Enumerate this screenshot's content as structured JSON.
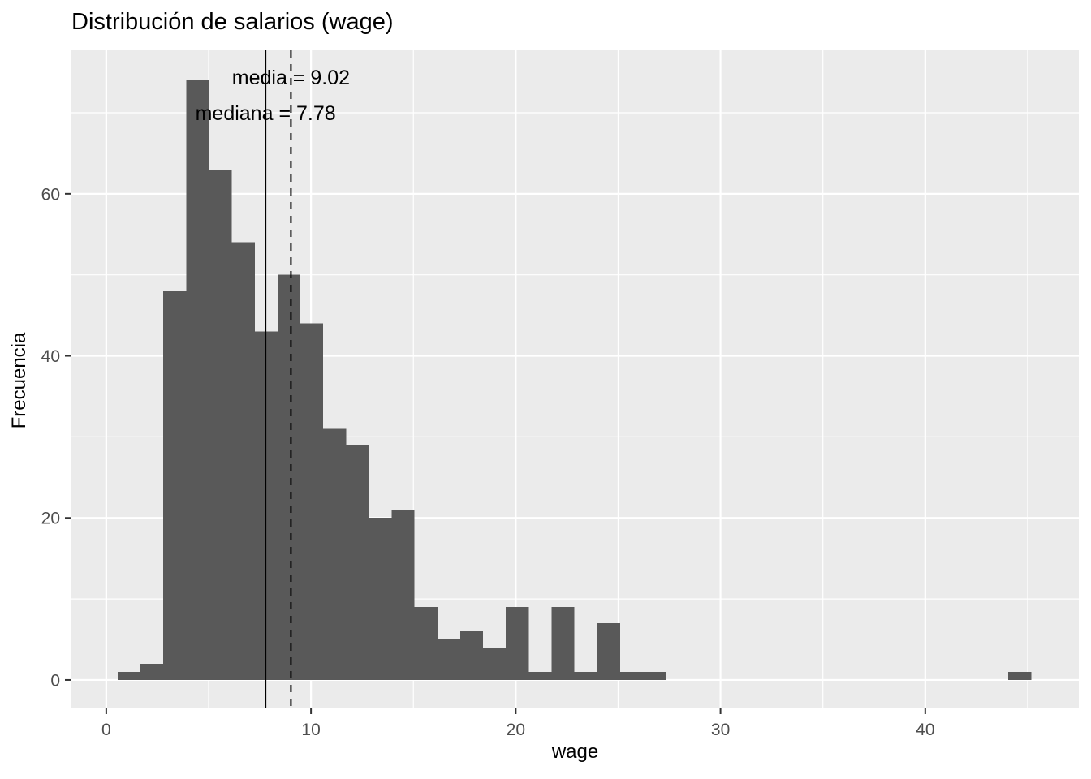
{
  "title": "Distribución de salarios (wage)",
  "chart_data": {
    "type": "bar",
    "subtype": "histogram",
    "title": "Distribución de salarios (wage)",
    "xlabel": "wage",
    "ylabel": "Frecuencia",
    "bins": {
      "start": 0.5577,
      "binwidth": 1.11538,
      "counts": [
        1,
        2,
        48,
        74,
        63,
        54,
        43,
        50,
        44,
        31,
        29,
        20,
        21,
        9,
        5,
        6,
        4,
        9,
        1,
        9,
        1,
        7,
        1,
        1,
        0,
        0,
        0,
        0,
        0,
        0,
        0,
        0,
        0,
        0,
        0,
        0,
        0,
        0,
        0,
        1
      ]
    },
    "x_ticks": [
      0,
      10,
      20,
      30,
      40
    ],
    "x_minor_ticks": [
      5,
      15,
      25,
      35,
      45
    ],
    "y_ticks": [
      0,
      20,
      40,
      60
    ],
    "y_minor_ticks": [
      10,
      30,
      50,
      70
    ],
    "xlim": [
      -1.7,
      47.5
    ],
    "ylim": [
      -3.41,
      77.71
    ],
    "grid": true,
    "legend": "none",
    "reference_lines": [
      {
        "name": "media",
        "value": 9.02,
        "style": "dashed",
        "label": "media = 9.02",
        "label_y": 74.4
      },
      {
        "name": "mediana",
        "value": 7.78,
        "style": "solid",
        "label": "mediana = 7.78",
        "label_y": 70.0
      }
    ],
    "colors": {
      "panel_background": "#EBEBEB",
      "grid": "#FFFFFF",
      "bar_fill": "#595959",
      "axis_text": "#4D4D4D",
      "tick_mark": "#333333",
      "text": "#000000",
      "line": "#000000"
    }
  }
}
